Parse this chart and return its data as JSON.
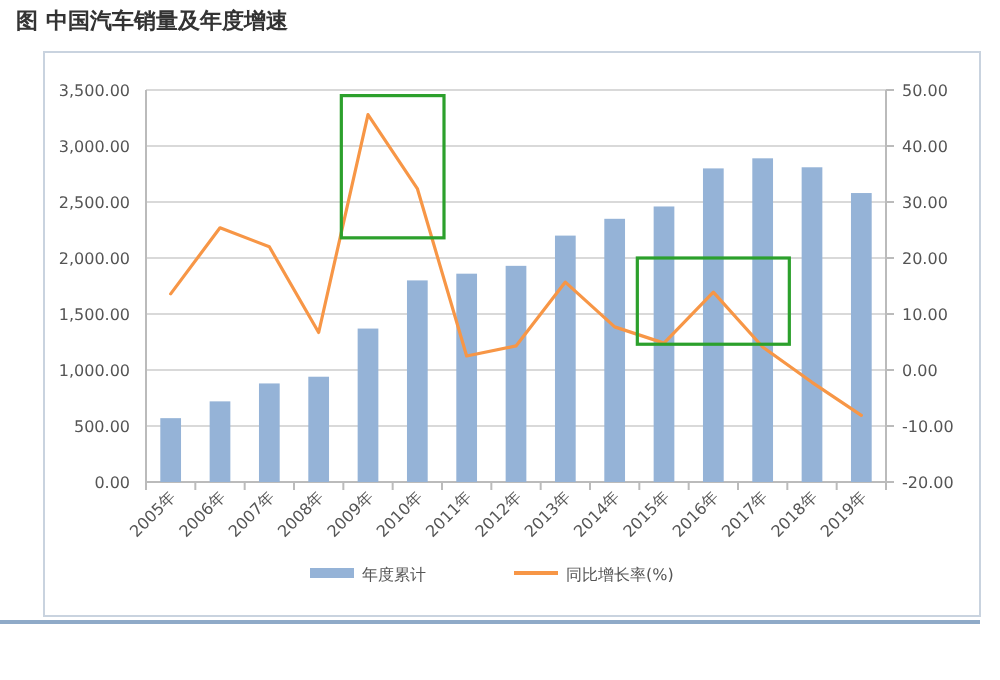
{
  "chart_data": {
    "type": "bar",
    "title": "图  中国汽车销量及年度增速",
    "categories": [
      "2005年",
      "2006年",
      "2007年",
      "2008年",
      "2009年",
      "2010年",
      "2011年",
      "2012年",
      "2013年",
      "2014年",
      "2015年",
      "2016年",
      "2017年",
      "2018年",
      "2019年"
    ],
    "series": [
      {
        "name": "年度累计",
        "color": "#95b3d7",
        "values": [
          570,
          720,
          880,
          940,
          1370,
          1800,
          1860,
          1930,
          2200,
          2350,
          2460,
          2800,
          2890,
          2810,
          2580
        ]
      },
      {
        "name": "同比增长率(%)",
        "type": "line",
        "axis": "y2",
        "color": "#f79646",
        "values": [
          13.6,
          25.4,
          22.0,
          6.7,
          45.6,
          32.4,
          2.5,
          4.3,
          15.7,
          7.7,
          4.8,
          13.9,
          4.1,
          -2.2,
          -8.1
        ]
      }
    ],
    "ylim": [
      0,
      3500
    ],
    "yticks": [
      {
        "value": 0,
        "label": "0.00"
      },
      {
        "value": 500,
        "label": "500.00"
      },
      {
        "value": 1000,
        "label": "1,000.00"
      },
      {
        "value": 1500,
        "label": "1,500.00"
      },
      {
        "value": 2000,
        "label": "2,000.00"
      },
      {
        "value": 2500,
        "label": "2,500.00"
      },
      {
        "value": 3000,
        "label": "3,000.00"
      },
      {
        "value": 3500,
        "label": "3,500.00"
      }
    ],
    "y2lim": [
      -20,
      50
    ],
    "y2ticks": [
      {
        "value": -20,
        "label": "-20.00"
      },
      {
        "value": -10,
        "label": "-10.00"
      },
      {
        "value": 0,
        "label": "0.00"
      },
      {
        "value": 10,
        "label": "10.00"
      },
      {
        "value": 20,
        "label": "20.00"
      },
      {
        "value": 30,
        "label": "30.00"
      },
      {
        "value": 40,
        "label": "40.00"
      },
      {
        "value": 50,
        "label": "50.00"
      }
    ],
    "grid": "y",
    "legend": "bottom",
    "marker": "none",
    "line_style": "solid"
  }
}
